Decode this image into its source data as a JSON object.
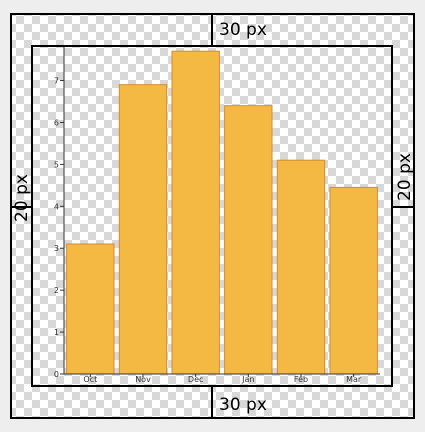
{
  "padding_labels": {
    "top": "30 px",
    "bottom": "30 px",
    "left": "20 px",
    "right": "20 px"
  },
  "colors": {
    "bar_fill": "#f4b942",
    "bar_stroke": "#d98a2e",
    "frame": "#000000",
    "axis": "#333333",
    "checker_light": "#ffffff",
    "checker_dark": "#d8d8d8"
  },
  "chart_data": {
    "type": "bar",
    "title": "",
    "xlabel": "",
    "ylabel": "",
    "categories": [
      "Oct",
      "Nov",
      "Dec",
      "Jan",
      "Feb",
      "Mar"
    ],
    "values": [
      3.1,
      6.9,
      7.7,
      6.4,
      5.1,
      4.45
    ],
    "ylim": [
      0,
      7.8
    ],
    "yticks": [
      0,
      1,
      2,
      3,
      4,
      5,
      6,
      7
    ],
    "grid": false,
    "legend": "none"
  }
}
